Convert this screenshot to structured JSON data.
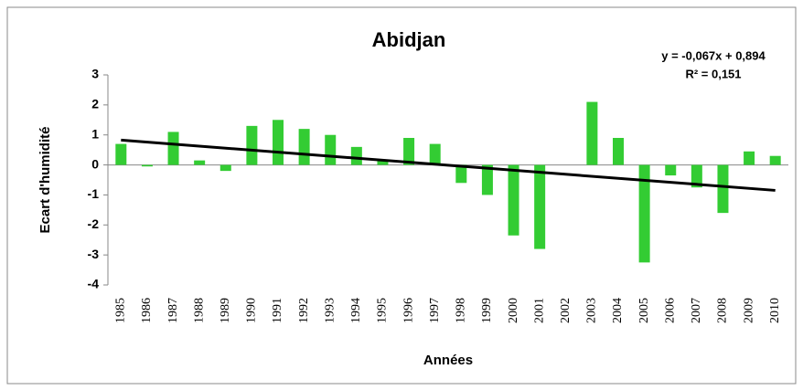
{
  "chart_data": {
    "type": "bar",
    "title": "Abidjan",
    "y_label": "Ecart d'humidité",
    "x_label": "Années",
    "categories": [
      "1985",
      "1986",
      "1987",
      "1988",
      "1989",
      "1990",
      "1991",
      "1992",
      "1993",
      "1994",
      "1995",
      "1996",
      "1997",
      "1998",
      "1999",
      "2000",
      "2001",
      "2002",
      "2003",
      "2004",
      "2005",
      "2006",
      "2007",
      "2008",
      "2009",
      "2010"
    ],
    "values": [
      0.7,
      -0.05,
      1.1,
      0.15,
      -0.2,
      1.3,
      1.5,
      1.2,
      1.0,
      0.6,
      0.15,
      0.9,
      0.7,
      -0.6,
      -1.0,
      -2.35,
      -2.8,
      0,
      2.1,
      0.9,
      -3.25,
      -0.35,
      -0.75,
      -1.6,
      0.45,
      0.3
    ],
    "color": "#33cc33",
    "ylim": [
      -4,
      3
    ],
    "yticks": [
      3,
      2,
      1,
      0,
      -1,
      -2,
      -3,
      -4
    ],
    "trendline": {
      "equation": "y = -0,067x + 0,894",
      "r2": "R² = 0,151",
      "slope": -0.067,
      "intercept": 0.894,
      "color": "#000000"
    }
  }
}
